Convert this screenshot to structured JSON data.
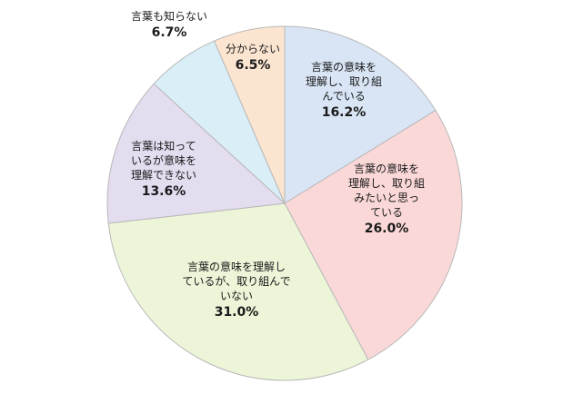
{
  "chart_data": {
    "type": "pie",
    "start": "top",
    "direction": "clockwise",
    "slices": [
      {
        "label": "言葉の意味を\n理解し、取り組\nんでいる",
        "value": 16.2,
        "value_text": "16.2%",
        "color": "#d9e5f5"
      },
      {
        "label": "言葉の意味を\n理解し、取り組\nみたいと思っ\nている",
        "value": 26.0,
        "value_text": "26.0%",
        "color": "#fbd8d8"
      },
      {
        "label": "言葉の意味を理解し\nているが、取り組んで\nいない",
        "value": 31.0,
        "value_text": "31.0%",
        "color": "#ecf5d8"
      },
      {
        "label": "言葉は知って\nいるが意味を\n理解できない",
        "value": 13.6,
        "value_text": "13.6%",
        "color": "#e4dcef"
      },
      {
        "label": "言葉も知らない",
        "value": 6.7,
        "value_text": "6.7%",
        "color": "#d9eef7"
      },
      {
        "label": "分からない",
        "value": 6.5,
        "value_text": "6.5%",
        "color": "#fbe5d1"
      }
    ]
  }
}
